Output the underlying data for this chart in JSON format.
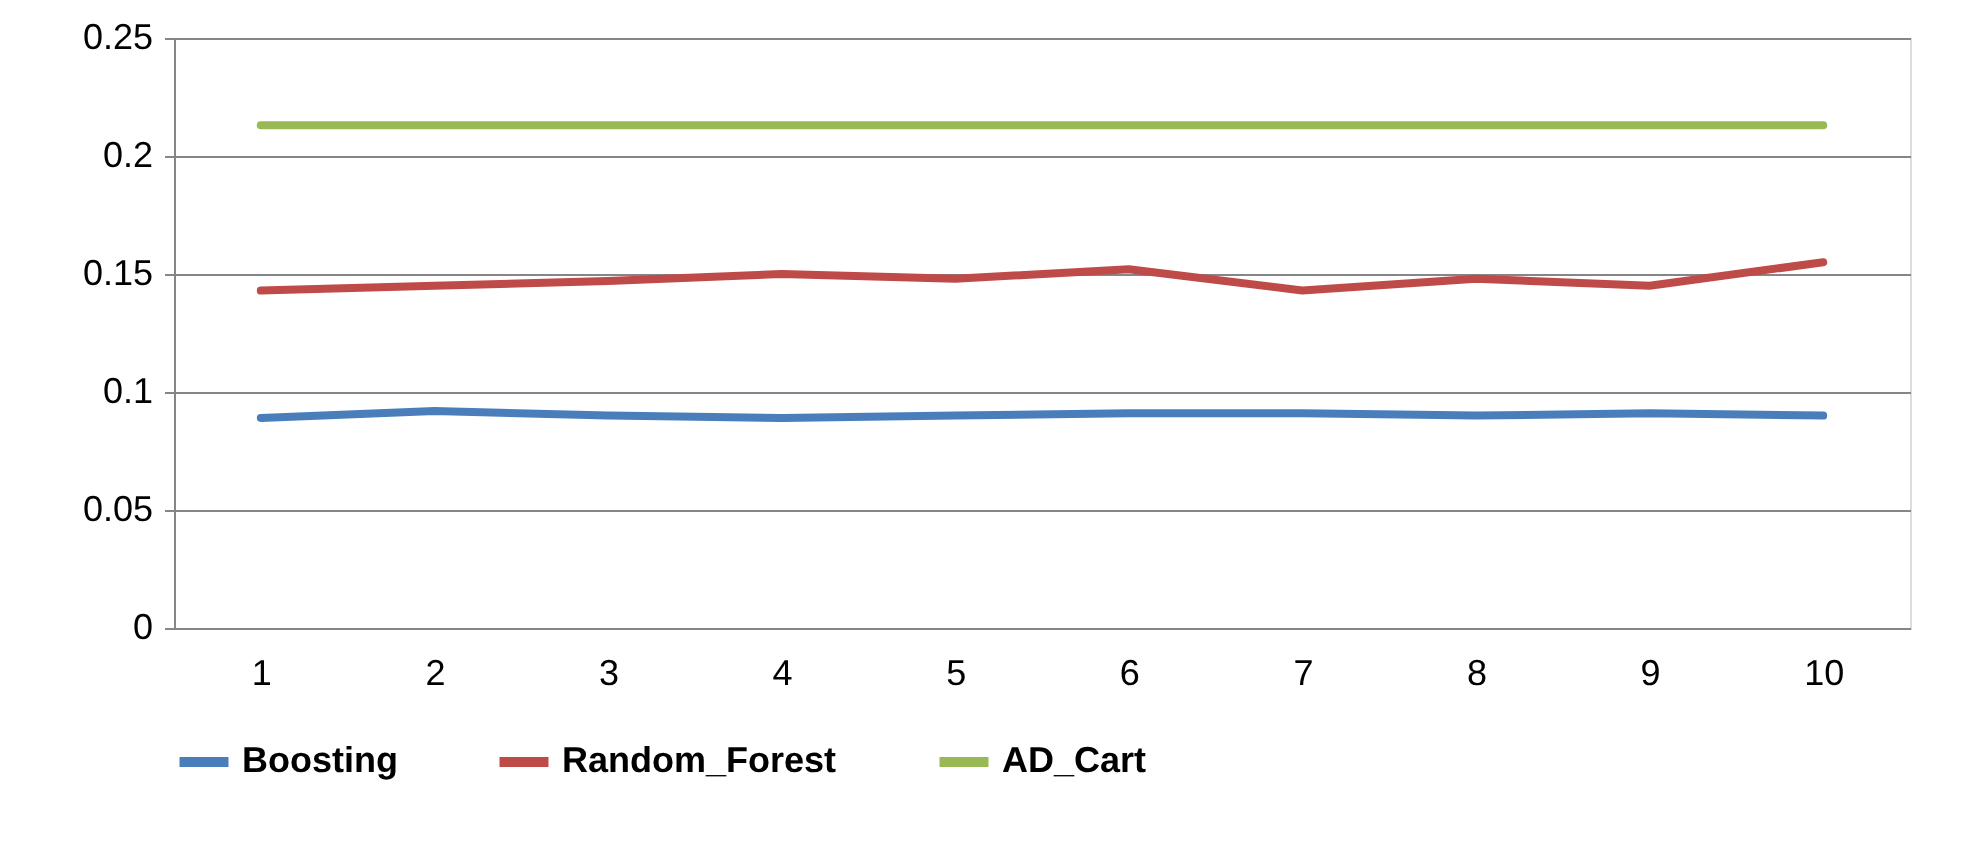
{
  "chart_data": {
    "type": "line",
    "categories": [
      "1",
      "2",
      "3",
      "4",
      "5",
      "6",
      "7",
      "8",
      "9",
      "10"
    ],
    "series": [
      {
        "name": "Boosting",
        "color": "#4a7ebb",
        "values": [
          0.089,
          0.092,
          0.09,
          0.089,
          0.09,
          0.091,
          0.091,
          0.09,
          0.091,
          0.09
        ]
      },
      {
        "name": "Random_Forest",
        "color": "#be4b48",
        "values": [
          0.143,
          0.145,
          0.147,
          0.15,
          0.148,
          0.152,
          0.143,
          0.148,
          0.145,
          0.155
        ]
      },
      {
        "name": "AD_Cart",
        "color": "#98b954",
        "values": [
          0.213,
          0.213,
          0.213,
          0.213,
          0.213,
          0.213,
          0.213,
          0.213,
          0.213,
          0.213
        ]
      }
    ],
    "ylim": [
      0,
      0.25
    ],
    "yticks": [
      0,
      0.05,
      0.1,
      0.15,
      0.2,
      0.25
    ],
    "grid": "y",
    "legend": "bottom",
    "marker": "none",
    "line_style": "solid"
  }
}
